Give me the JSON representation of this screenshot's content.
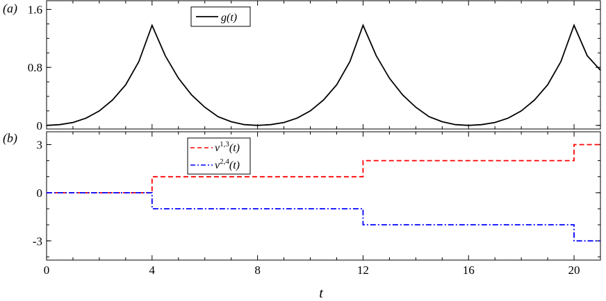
{
  "chart_data": [
    {
      "panel": "(a)",
      "type": "line",
      "xlim": [
        0,
        21
      ],
      "ylim": [
        -0.05,
        1.72
      ],
      "yticks": [
        0,
        0.8,
        1.6
      ],
      "ytick_labels": [
        "0",
        "0.8",
        "1.6"
      ],
      "grid": false,
      "legend_position": "top-center",
      "series": [
        {
          "name": "g(t)",
          "color": "#000000",
          "style": "solid",
          "x": [
            0,
            0.5,
            1,
            1.5,
            2,
            2.5,
            3,
            3.5,
            4,
            4.5,
            5,
            5.5,
            6,
            6.5,
            7,
            7.5,
            8,
            8.5,
            9,
            9.5,
            10,
            10.5,
            11,
            11.5,
            12,
            12.5,
            13,
            13.5,
            14,
            14.5,
            15,
            15.5,
            16,
            16.5,
            17,
            17.5,
            18,
            18.5,
            19,
            19.5,
            20,
            20.5,
            21
          ],
          "y": [
            0,
            0.01,
            0.04,
            0.1,
            0.2,
            0.35,
            0.56,
            0.88,
            1.38,
            0.96,
            0.65,
            0.42,
            0.25,
            0.12,
            0.05,
            0.01,
            0,
            0.01,
            0.04,
            0.1,
            0.2,
            0.35,
            0.56,
            0.88,
            1.38,
            0.96,
            0.65,
            0.42,
            0.25,
            0.12,
            0.05,
            0.01,
            0,
            0.01,
            0.04,
            0.1,
            0.2,
            0.35,
            0.56,
            0.88,
            1.38,
            0.96,
            0.76
          ]
        }
      ]
    },
    {
      "panel": "(b)",
      "type": "line",
      "xlim": [
        0,
        21
      ],
      "ylim": [
        -4.2,
        3.8
      ],
      "xticks": [
        0,
        4,
        8,
        12,
        16,
        20
      ],
      "xtick_labels": [
        "0",
        "4",
        "8",
        "12",
        "16",
        "20"
      ],
      "yticks": [
        -3,
        0,
        3
      ],
      "ytick_labels": [
        "-3",
        "0",
        "3"
      ],
      "xlabel": "t",
      "grid": false,
      "legend_position": "top-left",
      "series": [
        {
          "name": "ν1,3(t)",
          "color": "#ff0000",
          "style": "dashed",
          "x": [
            0,
            4,
            4,
            12,
            12,
            20,
            20,
            21
          ],
          "y": [
            0,
            0,
            1,
            1,
            2,
            2,
            3,
            3
          ]
        },
        {
          "name": "ν2,4(t)",
          "color": "#0000ff",
          "style": "dashdot",
          "x": [
            0,
            4,
            4,
            12,
            12,
            20,
            20,
            21
          ],
          "y": [
            0,
            0,
            -1,
            -1,
            -2,
            -2,
            -3,
            -3
          ]
        }
      ]
    }
  ]
}
